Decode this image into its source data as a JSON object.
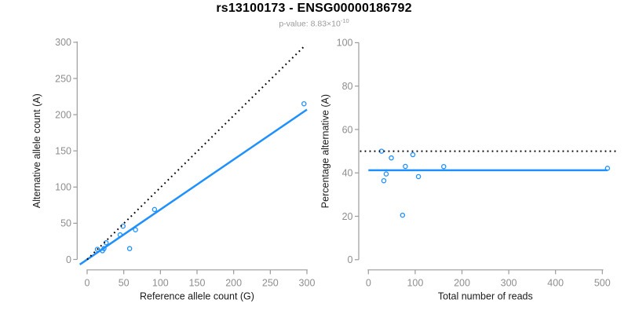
{
  "header": {
    "title": "rs13100173 - ENSG00000186792",
    "subtitle_label": "p-value: ",
    "subtitle_mantissa": "8.83",
    "subtitle_times": "×10",
    "subtitle_exponent": "-10"
  },
  "colors": {
    "point": "#1E90FF",
    "fit_line": "#1E90FF",
    "identity_line": "#000000",
    "axis": "#9b9b9b",
    "tick_label": "#8e8e8e",
    "axis_title": "#1a1a1a",
    "title": "#000000",
    "subtitle": "#9a9a9a",
    "background": "#ffffff"
  },
  "chart_data": [
    {
      "name": "allele-counts",
      "type": "scatter",
      "title": "",
      "xlabel": "Reference allele count (G)",
      "ylabel": "Alternative allele count (A)",
      "xlim": [
        0,
        300
      ],
      "ylim": [
        0,
        300
      ],
      "xticks": [
        0,
        50,
        100,
        150,
        200,
        250,
        300
      ],
      "yticks": [
        0,
        50,
        100,
        150,
        200,
        250,
        300
      ],
      "grid": false,
      "legend": "none",
      "points": [
        [
          14,
          14
        ],
        [
          21,
          12
        ],
        [
          23,
          15
        ],
        [
          26,
          23
        ],
        [
          45,
          34
        ],
        [
          49,
          46
        ],
        [
          58,
          15
        ],
        [
          66,
          41
        ],
        [
          92,
          69
        ],
        [
          296,
          215
        ]
      ],
      "lines": [
        {
          "name": "fit-line",
          "style": "solid",
          "color": "#1E90FF",
          "from": [
            -10,
            -7
          ],
          "to": [
            300,
            207
          ]
        },
        {
          "name": "identity-line",
          "style": "dotted",
          "color": "#000000",
          "from": [
            0,
            0
          ],
          "to": [
            298,
            296
          ]
        }
      ]
    },
    {
      "name": "percentage-alternative",
      "type": "scatter",
      "title": "",
      "xlabel": "Total number of reads",
      "ylabel": "Percentage alternative (A)",
      "xlim": [
        0,
        500
      ],
      "ylim": [
        0,
        100
      ],
      "xticks": [
        0,
        100,
        200,
        300,
        400,
        500
      ],
      "yticks": [
        0,
        20,
        40,
        60,
        80,
        100
      ],
      "grid": false,
      "legend": "none",
      "points": [
        [
          28,
          50.0
        ],
        [
          33,
          36.4
        ],
        [
          38,
          39.5
        ],
        [
          49,
          46.9
        ],
        [
          73,
          20.5
        ],
        [
          79,
          43.0
        ],
        [
          95,
          48.4
        ],
        [
          107,
          38.3
        ],
        [
          161,
          42.9
        ],
        [
          511,
          42.1
        ]
      ],
      "lines": [
        {
          "name": "mean-line",
          "style": "solid",
          "color": "#1E90FF",
          "from": [
            0,
            41.2
          ],
          "to": [
            511,
            41.2
          ]
        },
        {
          "name": "fifty-percent-line",
          "style": "dotted",
          "color": "#000000",
          "from": [
            -18,
            50
          ],
          "to": [
            534,
            50
          ]
        }
      ]
    }
  ]
}
